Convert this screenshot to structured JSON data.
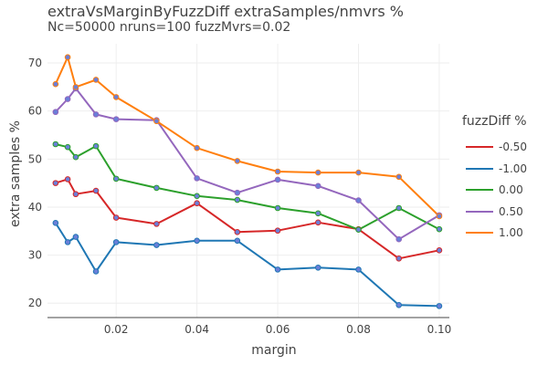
{
  "title": "extraVsMarginByFuzzDiff extraSamples/nmvrs %",
  "subtitle": "Nc=50000 nruns=100 fuzzMvrs=0.02",
  "chart_data": {
    "type": "line",
    "title": "extraVsMarginByFuzzDiff extraSamples/nmvrs %",
    "subtitle": "Nc=50000 nruns=100 fuzzMvrs=0.02",
    "xlabel": "margin",
    "ylabel": "extra samples %",
    "xlim": [
      0.003,
      0.1025
    ],
    "ylim": [
      17,
      74
    ],
    "x_ticks": [
      0.02,
      0.04,
      0.06,
      0.08,
      0.1
    ],
    "x_tick_labels": [
      "0.02",
      "0.04",
      "0.06",
      "0.08",
      "0.10"
    ],
    "y_ticks": [
      20,
      30,
      40,
      50,
      60,
      70
    ],
    "y_tick_labels": [
      "20",
      "30",
      "40",
      "50",
      "60",
      "70"
    ],
    "grid": true,
    "legend_title": "fuzzDiff %",
    "legend_position": "right",
    "marker_color": "#6a7fd8",
    "x": [
      0.005,
      0.008,
      0.01,
      0.015,
      0.02,
      0.03,
      0.04,
      0.05,
      0.06,
      0.07,
      0.08,
      0.09,
      0.1
    ],
    "series": [
      {
        "name": "-0.50",
        "color": "#d62728",
        "values": [
          45.0,
          45.8,
          42.7,
          43.4,
          37.8,
          36.5,
          40.8,
          34.8,
          35.1,
          36.8,
          35.4,
          29.3,
          31.0
        ]
      },
      {
        "name": "-1.00",
        "color": "#1f77b4",
        "values": [
          36.7,
          32.7,
          33.8,
          26.6,
          32.7,
          32.1,
          33.0,
          33.0,
          27.0,
          27.4,
          27.0,
          19.6,
          19.4
        ]
      },
      {
        "name": "0.00",
        "color": "#2ca02c",
        "values": [
          53.1,
          52.5,
          50.4,
          52.7,
          45.9,
          44.0,
          42.3,
          41.5,
          39.8,
          38.7,
          35.3,
          39.8,
          35.4
        ]
      },
      {
        "name": "0.50",
        "color": "#9467bd",
        "values": [
          59.8,
          62.5,
          64.7,
          59.3,
          58.3,
          58.1,
          46.0,
          43.0,
          45.7,
          44.4,
          41.4,
          33.3,
          38.3
        ]
      },
      {
        "name": "1.00",
        "color": "#ff7f0e",
        "values": [
          65.6,
          71.2,
          65.0,
          66.5,
          62.9,
          57.9,
          52.3,
          49.6,
          47.4,
          47.2,
          47.2,
          46.3,
          38.1
        ]
      }
    ]
  }
}
